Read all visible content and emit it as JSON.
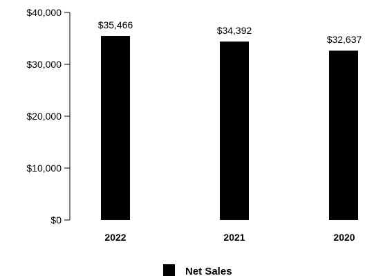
{
  "chart_data": {
    "type": "bar",
    "categories": [
      "2022",
      "2021",
      "2020"
    ],
    "series": [
      {
        "name": "Net Sales",
        "values": [
          35466,
          34392,
          32637
        ],
        "color": "#000000"
      }
    ],
    "data_labels": [
      "$35,466",
      "$34,392",
      "$32,637"
    ],
    "y_ticks": [
      0,
      10000,
      20000,
      30000,
      40000
    ],
    "y_tick_labels": [
      "$0",
      "$10,000",
      "$20,000",
      "$30,000",
      "$40,000"
    ],
    "ylim": [
      0,
      40000
    ],
    "title": "",
    "xlabel": "",
    "ylabel": "",
    "grid": false,
    "legend": {
      "position": "bottom-center",
      "entries": [
        "Net Sales"
      ]
    }
  }
}
